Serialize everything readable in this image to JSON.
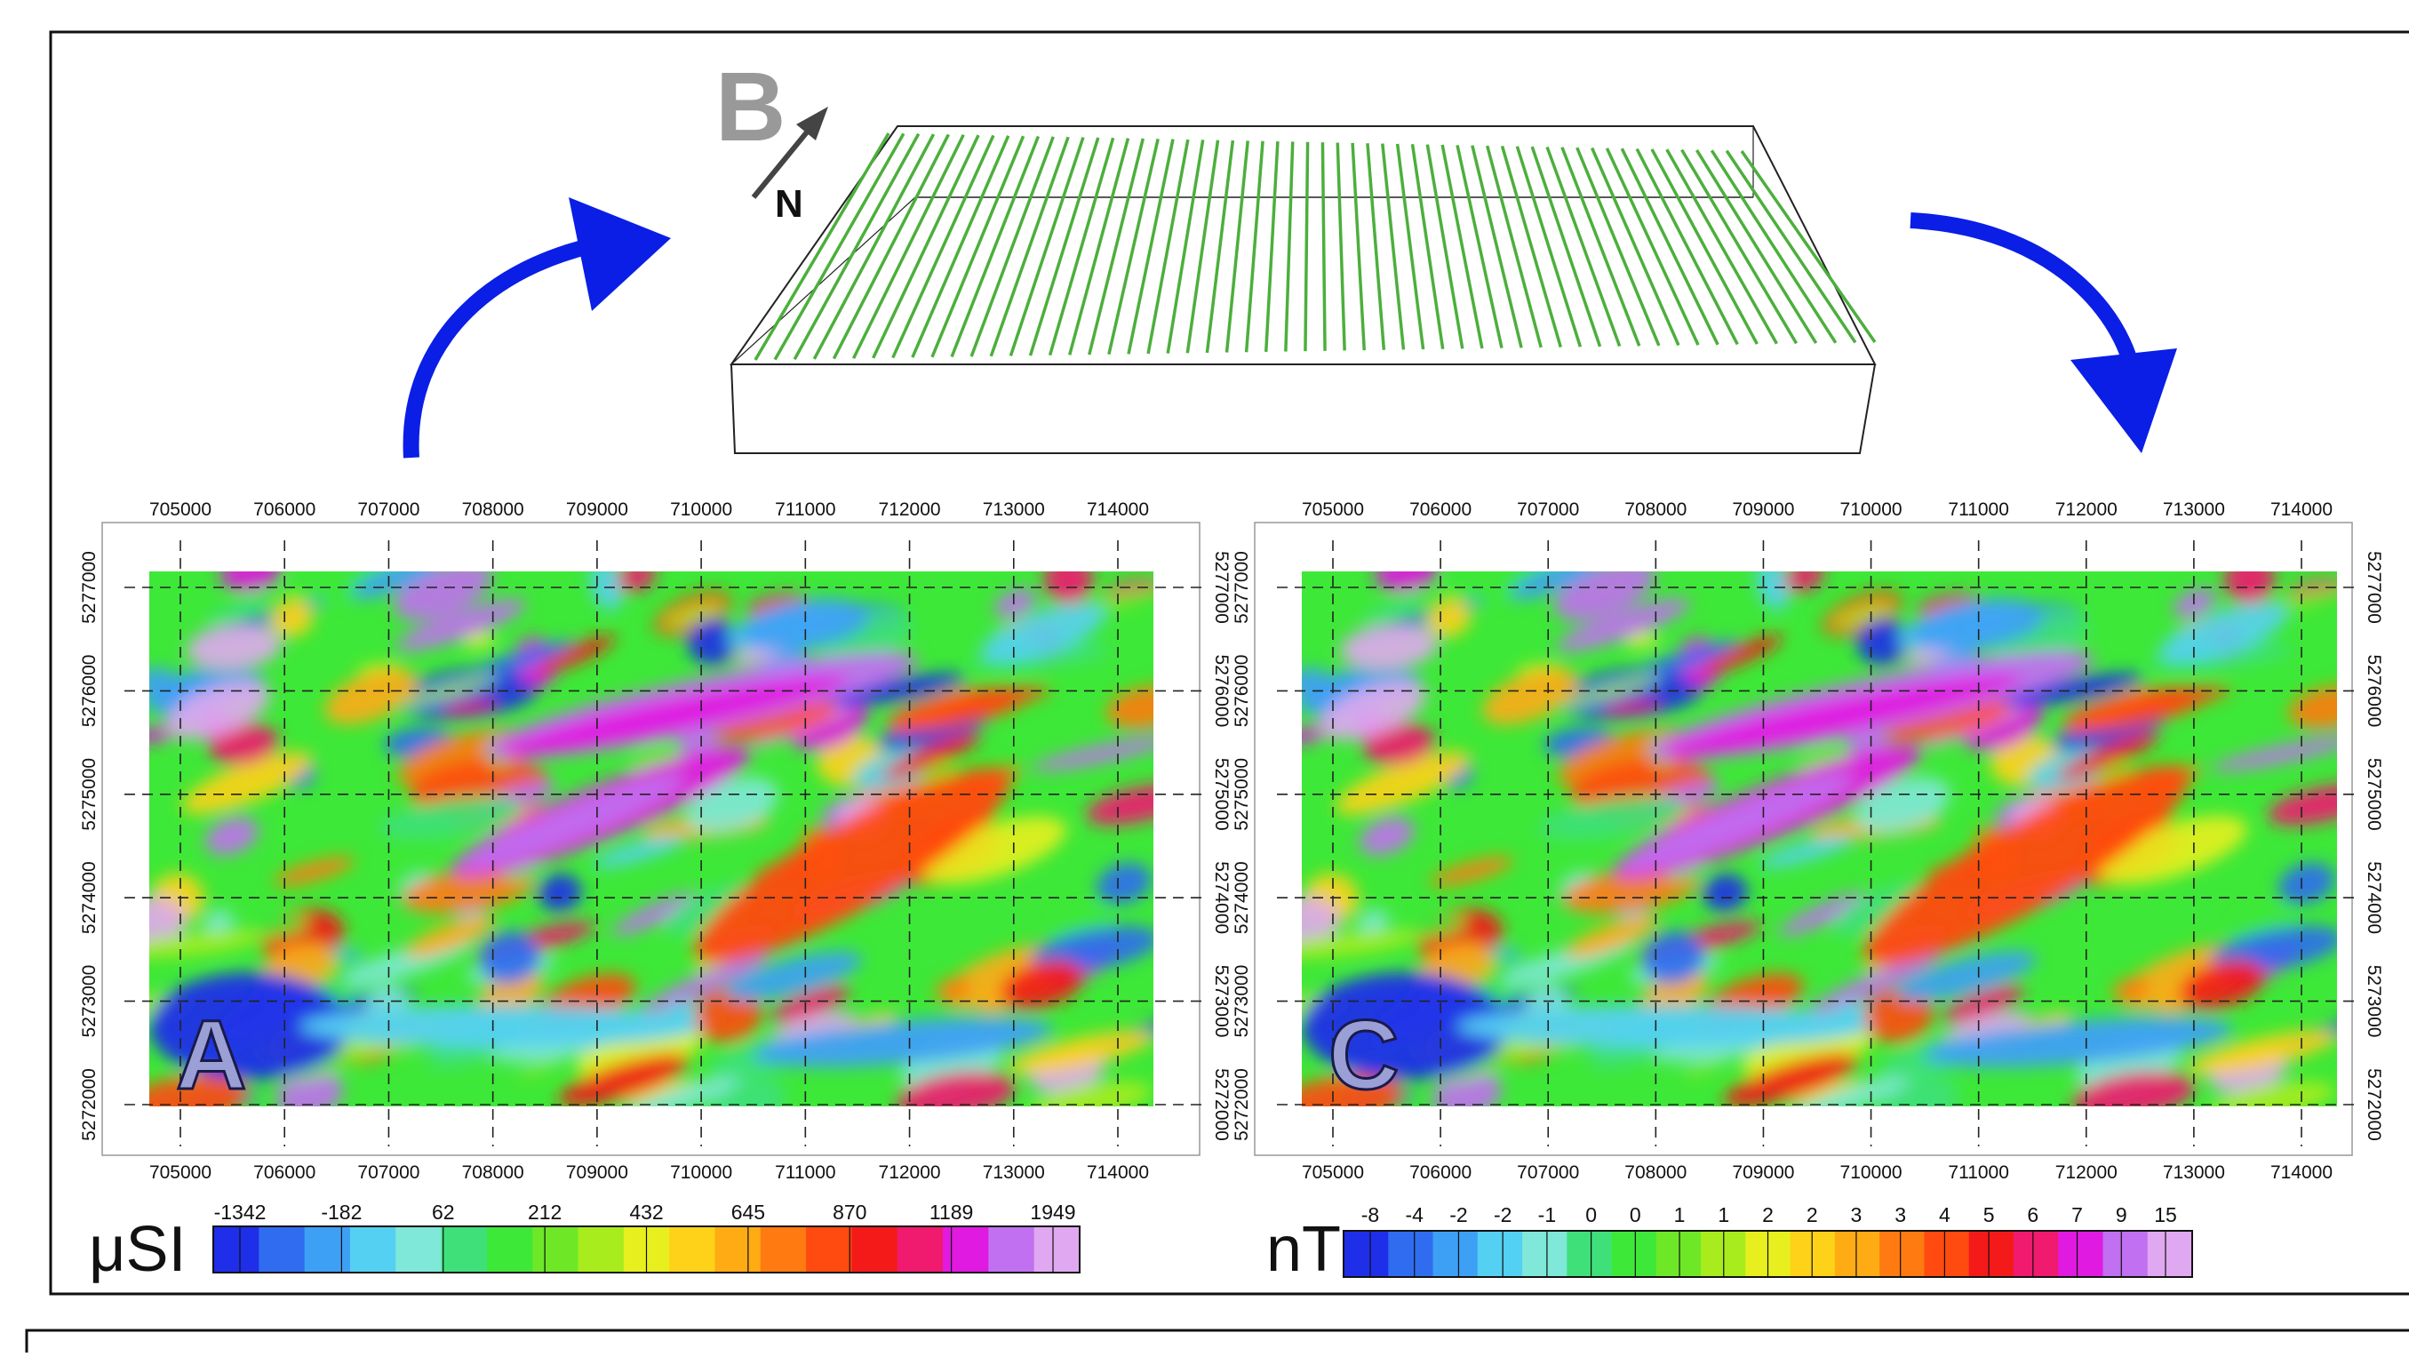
{
  "figure": {
    "panels": [
      {
        "letter": "A",
        "unit": "μSI",
        "x_ticks": [
          "705000",
          "706000",
          "707000",
          "708000",
          "709000",
          "710000",
          "711000",
          "712000",
          "713000",
          "714000"
        ],
        "y_ticks": [
          "5272000",
          "5273000",
          "5274000",
          "5275000",
          "5276000",
          "5277000"
        ],
        "colorbar_labels": [
          "-1342",
          "-182",
          "62",
          "212",
          "432",
          "645",
          "870",
          "1189",
          "1949"
        ]
      },
      {
        "letter": "C",
        "unit": "nT",
        "x_ticks": [
          "705000",
          "706000",
          "707000",
          "708000",
          "709000",
          "710000",
          "711000",
          "712000",
          "713000",
          "714000"
        ],
        "y_ticks": [
          "5272000",
          "5273000",
          "5274000",
          "5275000",
          "5276000",
          "5277000"
        ],
        "colorbar_labels": [
          "-8",
          "-4",
          "-2",
          "-2",
          "-1",
          "0",
          "0",
          "1",
          "1",
          "2",
          "2",
          "3",
          "3",
          "4",
          "5",
          "6",
          "7",
          "9",
          "15"
        ]
      }
    ],
    "model": {
      "letter": "B",
      "north": "N",
      "line_color": "#4caf3c"
    },
    "arrow_color": "#0a1ee6",
    "palette": [
      "#1f2ee8",
      "#2f6cf0",
      "#3ea0f5",
      "#54d0f2",
      "#7fe8d8",
      "#3fe07a",
      "#3ee838",
      "#6ee826",
      "#a8ec1e",
      "#e8ef1e",
      "#ffd21a",
      "#ffab14",
      "#ff7a10",
      "#ff4a10",
      "#f41a1a",
      "#f01a6e",
      "#e01ae0",
      "#c070f0",
      "#e0a8f0"
    ]
  }
}
